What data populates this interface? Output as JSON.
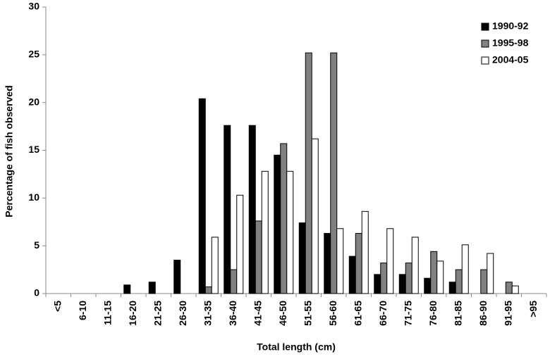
{
  "chart_data": {
    "type": "bar",
    "x_label": "Total length (cm)",
    "y_label": "Percentage of fish observed",
    "categories": [
      "<5",
      "6-10",
      "11-15",
      "16-20",
      "21-25",
      "26-30",
      "31-35",
      "36-40",
      "41-45",
      "46-50",
      "51-55",
      "56-60",
      "61-65",
      "66-70",
      "71-75",
      "76-80",
      "81-85",
      "86-90",
      "91-95",
      ">95"
    ],
    "series": [
      {
        "name": "1990-92",
        "color": "#000000",
        "values": [
          0,
          0,
          0,
          0.9,
          1.2,
          3.5,
          20.4,
          17.6,
          17.6,
          14.5,
          7.4,
          6.3,
          3.9,
          2.0,
          2.0,
          1.6,
          1.2,
          0,
          0,
          0
        ]
      },
      {
        "name": "1995-98",
        "color": "#808080",
        "values": [
          0,
          0,
          0,
          0,
          0,
          0,
          0.7,
          2.5,
          7.6,
          15.7,
          25.2,
          25.2,
          6.3,
          3.2,
          3.2,
          4.4,
          2.5,
          2.5,
          1.2,
          0
        ]
      },
      {
        "name": "2004-05",
        "color": "#ffffff",
        "values": [
          0,
          0,
          0,
          0,
          0,
          0,
          5.9,
          10.3,
          12.8,
          12.8,
          16.2,
          6.8,
          8.6,
          6.8,
          5.9,
          3.4,
          5.1,
          4.2,
          0.8,
          0
        ]
      }
    ],
    "ylim": [
      0,
      30
    ],
    "yticks": [
      0,
      5,
      10,
      15,
      20,
      25,
      30
    ],
    "grid": false,
    "legend": "upper right"
  }
}
